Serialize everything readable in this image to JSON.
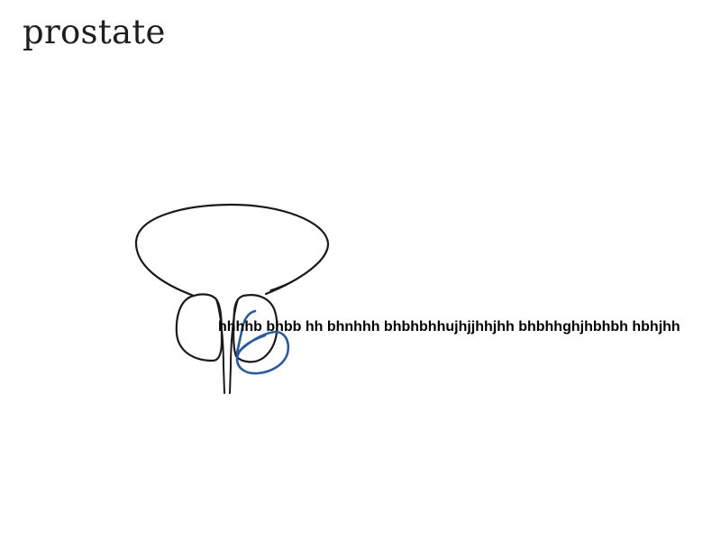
{
  "title": "prostate",
  "annotation": "hhhhb bhbb hh bhnhhh bhbhbhhujhjjhhjhh bhbhhghjhbhbh hbhjhh",
  "colors": {
    "outline": "#1a1a1a",
    "annotation_stroke": "#2d5a9a",
    "background": "#ffffff"
  }
}
